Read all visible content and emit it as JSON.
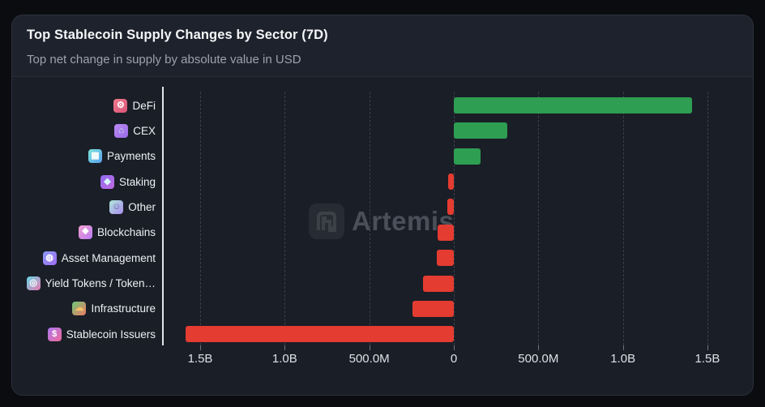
{
  "header": {
    "title": "Top Stablecoin Supply Changes by Sector (7D)",
    "subtitle": "Top net change in supply by absolute value in USD"
  },
  "watermark": {
    "text": "Artemis"
  },
  "chart_data": {
    "type": "bar",
    "orientation": "horizontal",
    "title": "Top Stablecoin Supply Changes by Sector (7D)",
    "subtitle": "Top net change in supply by absolute value in USD",
    "value_unit": "USD",
    "grid": "dashed-vertical",
    "legend": "none",
    "positive_color": "#2e9e52",
    "negative_color": "#e43c31",
    "categories": [
      "DeFi",
      "CEX",
      "Payments",
      "Staking",
      "Other",
      "Blockchains",
      "Asset Management",
      "Yield Tokens / Token…",
      "Infrastructure",
      "Stablecoin Issuers"
    ],
    "values_millions_usd": [
      1410,
      315,
      160,
      -32,
      -36,
      -95,
      -102,
      -180,
      -245,
      -1585
    ],
    "x_ticks": [
      {
        "value_millions": -1500,
        "label": "1.5B"
      },
      {
        "value_millions": -1000,
        "label": "1.0B"
      },
      {
        "value_millions": -500,
        "label": "500.0M"
      },
      {
        "value_millions": 0,
        "label": "0"
      },
      {
        "value_millions": 500,
        "label": "500.0M"
      },
      {
        "value_millions": 1000,
        "label": "1.0B"
      },
      {
        "value_millions": 1500,
        "label": "1.5B"
      }
    ],
    "xlim_millions": [
      -1720,
      1745
    ],
    "category_icons": [
      {
        "name": "defi-icon",
        "glyph": "⚙",
        "glyph_color": "#ffffff",
        "gradient": [
          "#f2788c",
          "#d85578"
        ]
      },
      {
        "name": "cex-icon",
        "glyph": "⌂",
        "glyph_color": "#bff0df",
        "gradient": [
          "#b98af2",
          "#9a6ae8"
        ]
      },
      {
        "name": "payments-icon",
        "glyph": "▦",
        "glyph_color": "#ffffff",
        "gradient": [
          "#7ce6d8",
          "#5aa0f0"
        ]
      },
      {
        "name": "staking-icon",
        "glyph": "◆",
        "glyph_color": "#d8f8ff",
        "gradient": [
          "#8f6cf0",
          "#c06ae0"
        ]
      },
      {
        "name": "other-icon",
        "glyph": "☺",
        "glyph_color": "#6a5aa8",
        "gradient": [
          "#b0e8d8",
          "#a98cf0"
        ]
      },
      {
        "name": "blockchains-icon",
        "glyph": "❖",
        "glyph_color": "#ffffff",
        "gradient": [
          "#f2a0d0",
          "#b87af0"
        ]
      },
      {
        "name": "asset-management-icon",
        "glyph": "◍",
        "glyph_color": "#ffffff",
        "gradient": [
          "#8a9af5",
          "#a06cf0"
        ]
      },
      {
        "name": "yield-tokens-icon",
        "glyph": "◎",
        "glyph_color": "#ffffff",
        "gradient": [
          "#66d8e8",
          "#e878b0"
        ]
      },
      {
        "name": "infrastructure-icon",
        "glyph": "☁",
        "glyph_color": "#f5c06a",
        "gradient": [
          "#6cc878",
          "#f07a64"
        ]
      },
      {
        "name": "stablecoin-issuers-icon",
        "glyph": "$",
        "glyph_color": "#ffffff",
        "gradient": [
          "#aa78f0",
          "#f06a9a"
        ]
      }
    ]
  }
}
